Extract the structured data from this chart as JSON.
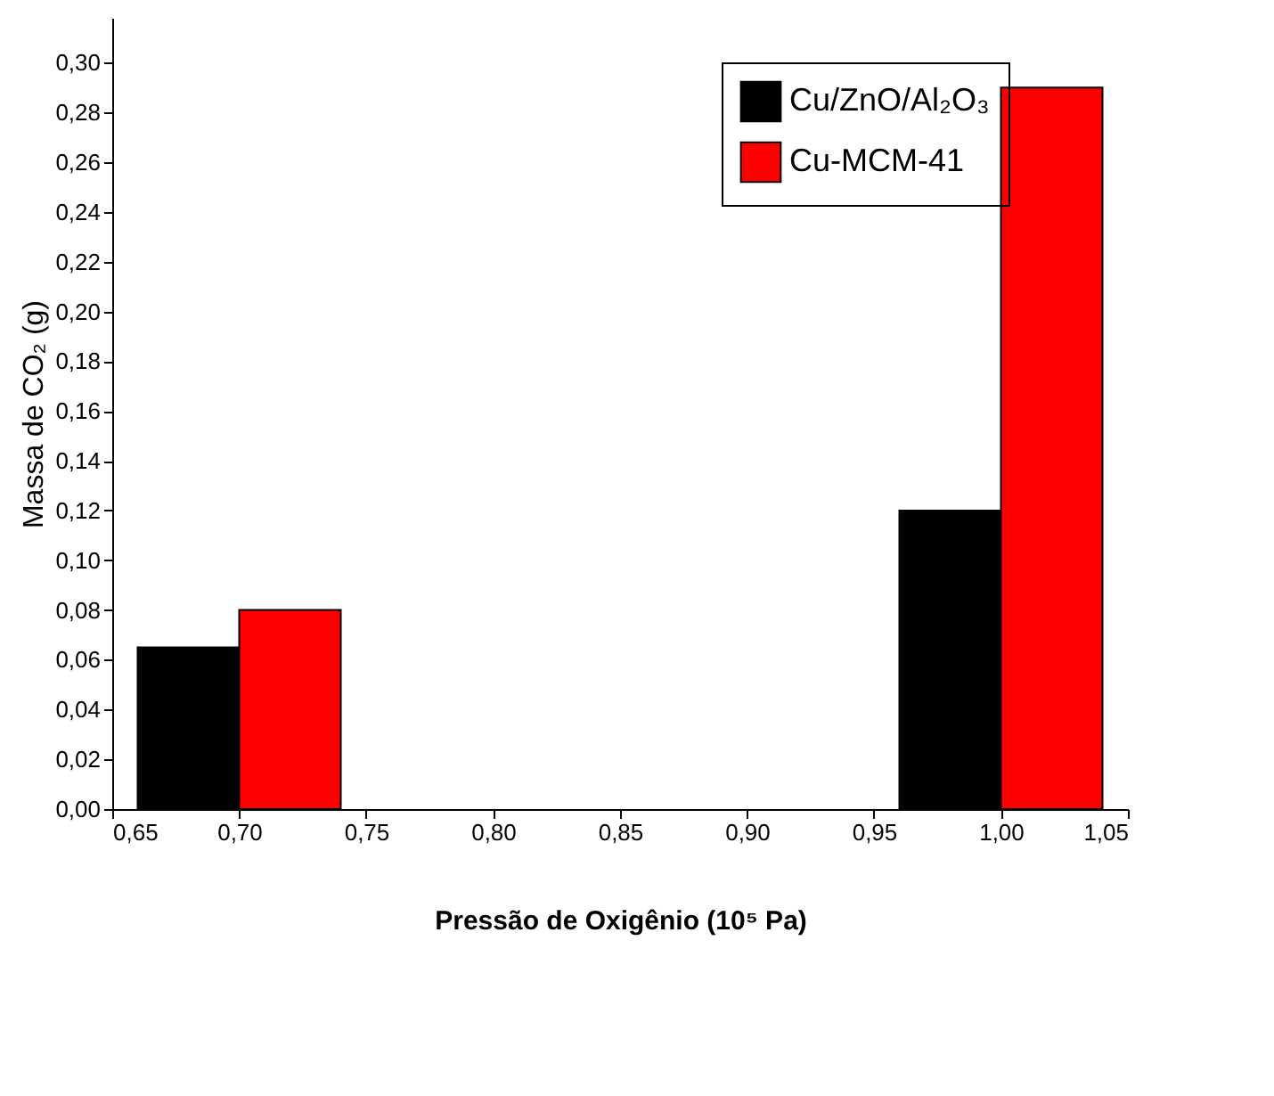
{
  "chart_data": {
    "type": "bar",
    "xlabel": "Pressão de Oxigênio (10⁵ Pa)",
    "ylabel": "Massa de CO₂ (g)",
    "series": [
      {
        "name": "Cu/ZnO/Al₂O₃",
        "color": "#000000",
        "x": [
          0.68,
          0.98
        ],
        "values": [
          0.065,
          0.12
        ]
      },
      {
        "name": "Cu-MCM-41",
        "color": "#ff0000",
        "x": [
          0.72,
          1.02
        ],
        "values": [
          0.08,
          0.29
        ]
      }
    ],
    "xlim": [
      0.65,
      1.05
    ],
    "xticks": [
      {
        "value": 0.65,
        "label": "0,65"
      },
      {
        "value": 0.7,
        "label": "0,70"
      },
      {
        "value": 0.75,
        "label": "0,75"
      },
      {
        "value": 0.8,
        "label": "0,80"
      },
      {
        "value": 0.85,
        "label": "0,85"
      },
      {
        "value": 0.9,
        "label": "0,90"
      },
      {
        "value": 0.95,
        "label": "0,95"
      },
      {
        "value": 1.0,
        "label": "1,00"
      },
      {
        "value": 1.05,
        "label": "1,05"
      }
    ],
    "ylim": [
      0,
      0.318
    ],
    "yticks": [
      {
        "value": 0,
        "label": "0,00"
      },
      {
        "value": 0.02,
        "label": "0,02"
      },
      {
        "value": 0.04,
        "label": "0,04"
      },
      {
        "value": 0.06,
        "label": "0,06"
      },
      {
        "value": 0.08,
        "label": "0,08"
      },
      {
        "value": 0.1,
        "label": "0,10"
      },
      {
        "value": 0.12,
        "label": "0,12"
      },
      {
        "value": 0.14,
        "label": "0,14"
      },
      {
        "value": 0.16,
        "label": "0,16"
      },
      {
        "value": 0.18,
        "label": "0,18"
      },
      {
        "value": 0.2,
        "label": "0,20"
      },
      {
        "value": 0.22,
        "label": "0,22"
      },
      {
        "value": 0.24,
        "label": "0,24"
      },
      {
        "value": 0.26,
        "label": "0,26"
      },
      {
        "value": 0.28,
        "label": "0,28"
      },
      {
        "value": 0.3,
        "label": "0,30"
      }
    ],
    "legend": "top right",
    "grid": false
  }
}
